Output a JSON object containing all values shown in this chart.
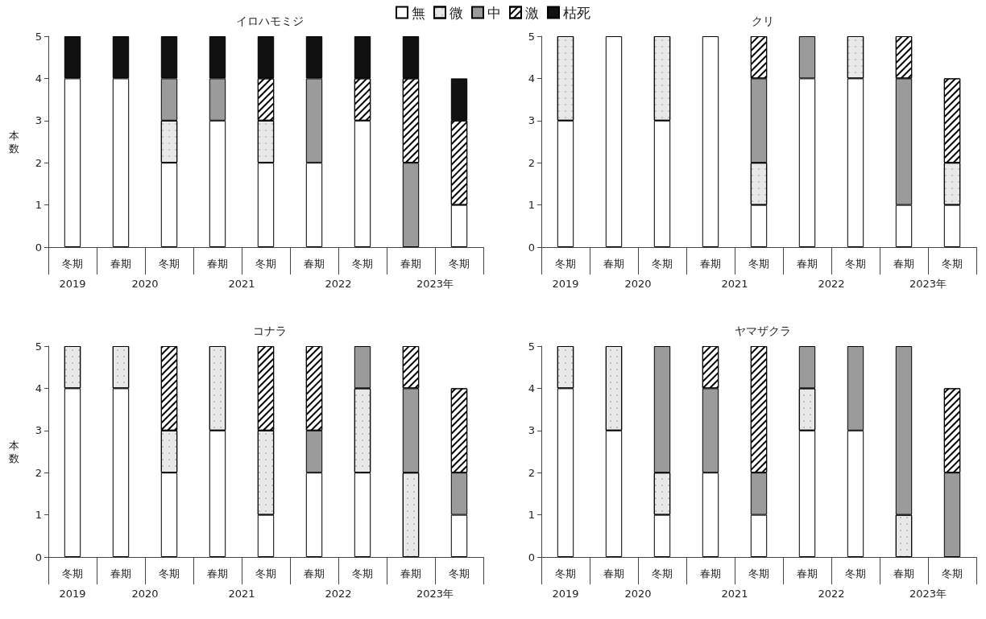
{
  "chart_data": [
    {
      "type": "bar",
      "title": "イロハモミジ",
      "ylabel": "本数",
      "stacked": true,
      "legend": "top",
      "categories": [
        "冬期",
        "春期",
        "冬期",
        "春期",
        "冬期",
        "春期",
        "冬期",
        "春期",
        "冬期"
      ],
      "annotations": [
        "2019",
        "2020",
        "2021",
        "2022",
        "2023年"
      ],
      "ylim": [
        0,
        5
      ],
      "yticks": [
        0,
        1,
        2,
        3,
        4,
        5
      ],
      "grid": false,
      "series": [
        {
          "name": "無",
          "color": "#ffffff",
          "values": [
            4,
            4,
            2,
            3,
            2,
            2,
            3,
            null,
            1
          ]
        },
        {
          "name": "微",
          "color": "#e8e8e8",
          "values": [
            null,
            null,
            1,
            null,
            1,
            null,
            null,
            null,
            null
          ]
        },
        {
          "name": "中",
          "color": "#9b9b9b",
          "values": [
            null,
            null,
            1,
            1,
            null,
            2,
            null,
            2,
            null
          ]
        },
        {
          "name": "激",
          "color": "#ffffff",
          "values": [
            null,
            null,
            null,
            null,
            1,
            null,
            1,
            2,
            2
          ]
        },
        {
          "name": "枯死",
          "color": "#111111",
          "values": [
            1,
            1,
            1,
            1,
            1,
            1,
            1,
            1,
            1
          ]
        }
      ]
    },
    {
      "type": "bar",
      "title": "クリ",
      "stacked": true,
      "categories": [
        "冬期",
        "春期",
        "冬期",
        "春期",
        "冬期",
        "春期",
        "冬期",
        "春期",
        "冬期"
      ],
      "annotations": [
        "2019",
        "2020",
        "2021",
        "2022",
        "2023年"
      ],
      "ylim": [
        0,
        5
      ],
      "yticks": [
        0,
        1,
        2,
        3,
        4,
        5
      ],
      "grid": false,
      "series": [
        {
          "color": "#ffffff",
          "values": [
            3,
            5,
            3,
            5,
            1,
            4,
            4,
            1,
            1
          ]
        },
        {
          "color": "#e8e8e8",
          "values": [
            2,
            null,
            2,
            null,
            1,
            null,
            1,
            null,
            1
          ]
        },
        {
          "color": "#9b9b9b",
          "values": [
            null,
            null,
            null,
            null,
            2,
            1,
            null,
            3,
            null
          ]
        },
        {
          "color": "#ffffff",
          "values": [
            null,
            null,
            null,
            null,
            1,
            null,
            null,
            1,
            2
          ]
        }
      ]
    },
    {
      "type": "bar",
      "title": "コナラ",
      "ylabel": "本数",
      "stacked": true,
      "categories": [
        "冬期",
        "春期",
        "冬期",
        "春期",
        "冬期",
        "春期",
        "冬期",
        "春期",
        "冬期"
      ],
      "annotations": [
        "2019",
        "2020",
        "2021",
        "2022",
        "2023年"
      ],
      "ylim": [
        0,
        5
      ],
      "yticks": [
        0,
        1,
        2,
        3,
        4,
        5
      ],
      "grid": false,
      "series": [
        {
          "color": "#ffffff",
          "values": [
            4,
            4,
            2,
            3,
            1,
            2,
            2,
            null,
            1
          ]
        },
        {
          "color": "#e8e8e8",
          "values": [
            1,
            1,
            1,
            2,
            2,
            null,
            2,
            2,
            null
          ]
        },
        {
          "color": "#9b9b9b",
          "values": [
            null,
            null,
            null,
            null,
            null,
            1,
            1,
            2,
            1
          ]
        },
        {
          "color": "#ffffff",
          "values": [
            null,
            null,
            2,
            null,
            2,
            2,
            null,
            1,
            2
          ]
        }
      ]
    },
    {
      "type": "bar",
      "title": "ヤマザクラ",
      "stacked": true,
      "categories": [
        "冬期",
        "春期",
        "冬期",
        "春期",
        "冬期",
        "春期",
        "冬期",
        "春期",
        "冬期"
      ],
      "annotations": [
        "2019",
        "2020",
        "2021",
        "2022",
        "2023年"
      ],
      "ylim": [
        0,
        5
      ],
      "yticks": [
        0,
        1,
        2,
        3,
        4,
        5
      ],
      "grid": false,
      "series": [
        {
          "color": "#ffffff",
          "values": [
            4,
            3,
            1,
            2,
            1,
            3,
            3,
            null,
            null
          ]
        },
        {
          "color": "#e8e8e8",
          "values": [
            1,
            2,
            1,
            null,
            null,
            1,
            null,
            1,
            null
          ]
        },
        {
          "color": "#9b9b9b",
          "values": [
            null,
            null,
            3,
            2,
            1,
            1,
            2,
            4,
            2
          ]
        },
        {
          "color": "#ffffff",
          "values": [
            null,
            null,
            null,
            1,
            3,
            null,
            null,
            null,
            2
          ]
        }
      ]
    }
  ]
}
